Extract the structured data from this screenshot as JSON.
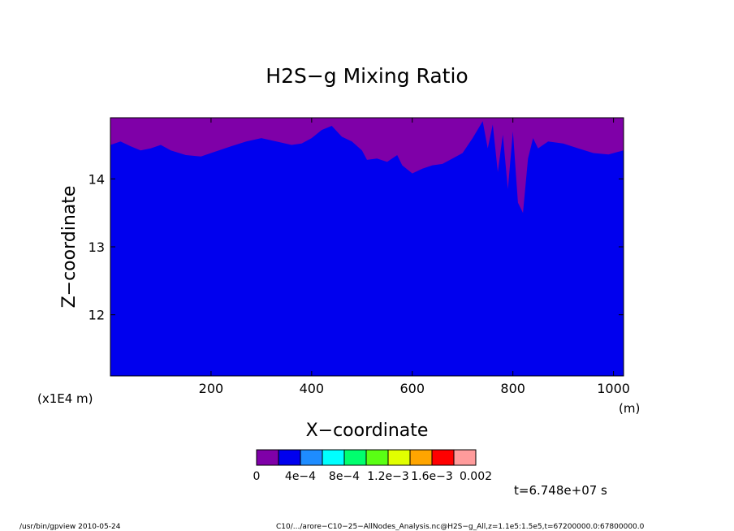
{
  "chart_data": {
    "type": "contour",
    "title": "H2S−g Mixing Ratio",
    "xlabel": "X−coordinate",
    "ylabel": "Z−coordinate",
    "x_units": "(m)",
    "y_units": "(x1E4 m)",
    "xlim": [
      0,
      1020
    ],
    "ylim": [
      11.1,
      14.9
    ],
    "x_ticks": [
      200,
      400,
      600,
      800,
      1000
    ],
    "x_tick_labels": [
      "200",
      "400",
      "600",
      "800",
      "1000"
    ],
    "y_ticks": [
      12,
      13,
      14
    ],
    "y_tick_labels": [
      "12",
      "13",
      "14"
    ],
    "grid": false,
    "colorbar": {
      "colors": [
        "#7f00a8",
        "#0000ee",
        "#1e8cff",
        "#00ffff",
        "#00ff6e",
        "#5aff14",
        "#e1ff00",
        "#ffa500",
        "#ff0000",
        "#ff9b9b"
      ],
      "labels": [
        "0",
        "4e−4",
        "8e−4",
        "1.2e−3",
        "1.6e−3",
        "0.002"
      ]
    },
    "regions": [
      {
        "level": "0",
        "color": "#7f00a8",
        "location": "top band above the blue region"
      },
      {
        "level": "2e-4 to 4e-4",
        "color": "#0000ee",
        "location": "bulk of domain"
      }
    ],
    "boundary_x": [
      0,
      20,
      40,
      60,
      80,
      100,
      120,
      150,
      180,
      200,
      240,
      270,
      300,
      330,
      360,
      380,
      400,
      420,
      440,
      460,
      480,
      500,
      510,
      530,
      550,
      570,
      580,
      600,
      620,
      640,
      660,
      680,
      700,
      720,
      740,
      750,
      760,
      770,
      780,
      790,
      800,
      810,
      820,
      830,
      840,
      850,
      870,
      900,
      930,
      960,
      990,
      1020
    ],
    "boundary_z": [
      14.5,
      14.55,
      14.48,
      14.42,
      14.45,
      14.5,
      14.42,
      14.35,
      14.33,
      14.38,
      14.48,
      14.55,
      14.6,
      14.55,
      14.5,
      14.52,
      14.6,
      14.72,
      14.78,
      14.62,
      14.55,
      14.42,
      14.28,
      14.3,
      14.25,
      14.35,
      14.2,
      14.08,
      14.15,
      14.2,
      14.22,
      14.3,
      14.38,
      14.6,
      14.85,
      14.45,
      14.8,
      14.1,
      14.65,
      13.85,
      14.7,
      13.65,
      13.5,
      14.3,
      14.6,
      14.45,
      14.55,
      14.52,
      14.45,
      14.38,
      14.36,
      14.42
    ],
    "time_label": "t=6.748e+07 s"
  },
  "footer": {
    "left": "/usr/bin/gpview   2010-05-24",
    "right": "C10/.../arore−C10−25−AllNodes_Analysis.nc@H2S−g_All,z=1.1e5:1.5e5,t=67200000.0:67800000.0"
  }
}
